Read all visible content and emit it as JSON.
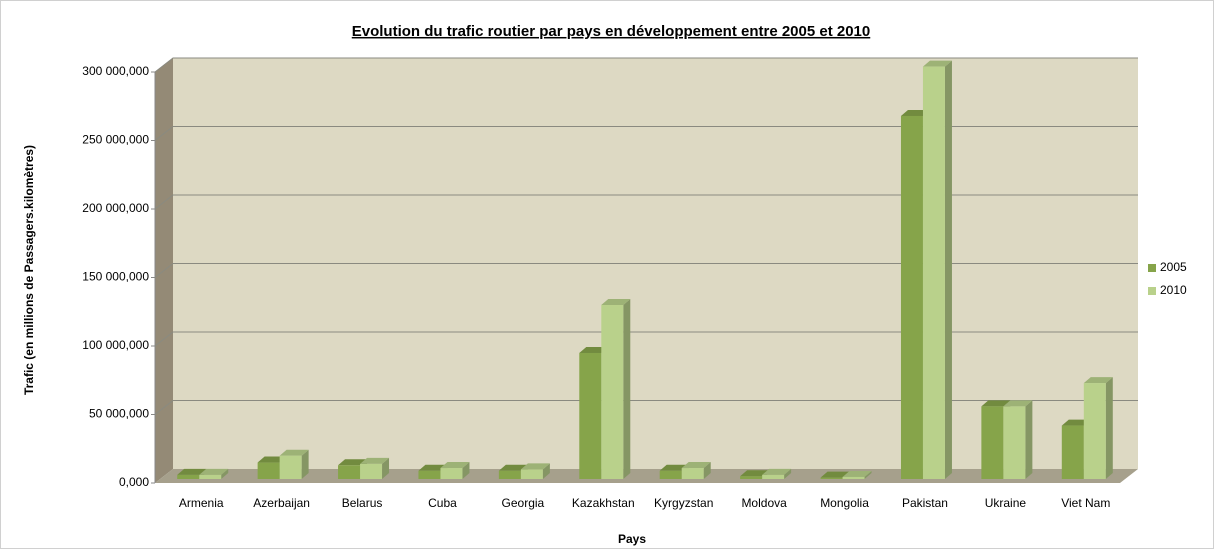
{
  "chart_data": {
    "type": "bar3d",
    "title": "Evolution du trafic routier par pays en développement entre 2005 et 2010",
    "x_label": "Pays",
    "y_label": "Trafic (en millions de Passagers.kilomètres)",
    "categories": [
      "Armenia",
      "Azerbaijan",
      "Belarus",
      "Cuba",
      "Georgia",
      "Kazakhstan",
      "Kyrgyzstan",
      "Moldova",
      "Mongolia",
      "Pakistan",
      "Ukraine",
      "Viet Nam"
    ],
    "series": [
      {
        "name": "2005",
        "color": "#86a44a",
        "values": [
          3000,
          12000,
          10000,
          6000,
          6000,
          92000,
          6000,
          2000,
          1000,
          265000,
          53000,
          39000
        ]
      },
      {
        "name": "2010",
        "color": "#b9d18b",
        "values": [
          3000,
          17000,
          11000,
          8000,
          7000,
          127000,
          8000,
          3000,
          1500,
          301000,
          53000,
          70000
        ]
      }
    ],
    "ylim": [
      0,
      300000
    ],
    "yticks": [
      {
        "value": 0,
        "label": "0,000"
      },
      {
        "value": 50000,
        "label": "50 000,000"
      },
      {
        "value": 100000,
        "label": "100 000,000"
      },
      {
        "value": 150000,
        "label": "150 000,000"
      },
      {
        "value": 200000,
        "label": "200 000,000"
      },
      {
        "value": 250000,
        "label": "250 000,000"
      },
      {
        "value": 300000,
        "label": "300 000,000"
      }
    ],
    "grid": true,
    "legend": "right"
  }
}
